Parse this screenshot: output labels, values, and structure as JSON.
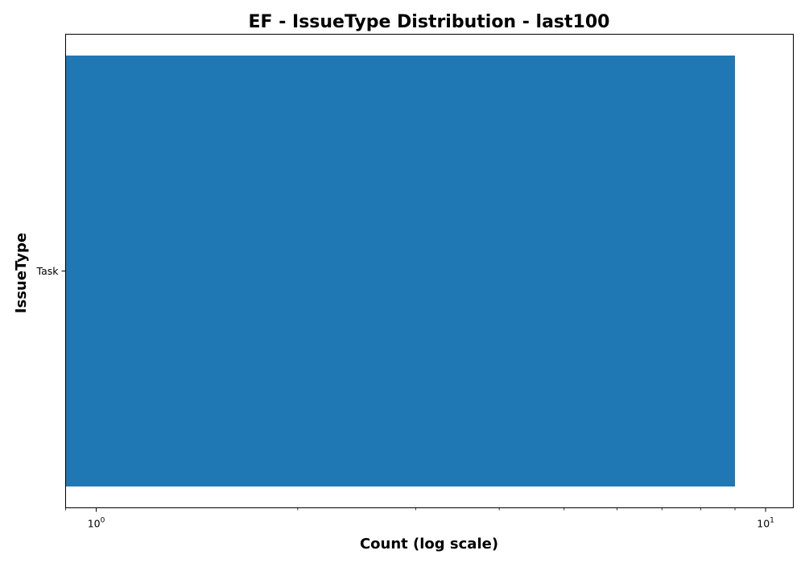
{
  "chart_data": {
    "type": "bar",
    "orientation": "horizontal",
    "title": "EF - IssueType Distribution - last100",
    "xlabel": "Count (log scale)",
    "ylabel": "IssueType",
    "x_scale": "log",
    "xlim": [
      0.9,
      11.0
    ],
    "categories": [
      "Task"
    ],
    "values": [
      9
    ],
    "x_tick_labels": [
      {
        "value": 1,
        "base": "10",
        "exponent": "0"
      },
      {
        "value": 10,
        "base": "10",
        "exponent": "1"
      }
    ],
    "grid": false,
    "legend": "none",
    "bar_color": "#1f77b4"
  }
}
